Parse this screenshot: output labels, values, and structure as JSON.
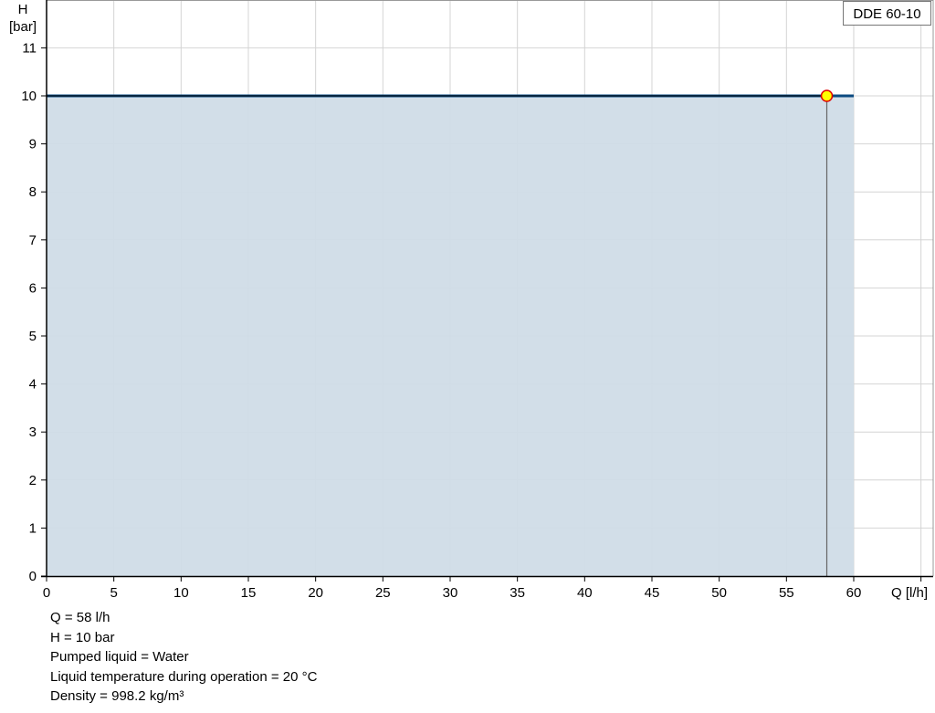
{
  "chart_data": {
    "type": "area",
    "title": "",
    "xlabel": "Q [l/h]",
    "ylabel_line1": "H",
    "ylabel_line2": "[bar]",
    "xlim": [
      0,
      66
    ],
    "ylim": [
      0,
      12
    ],
    "xticks": [
      0,
      5,
      10,
      15,
      20,
      25,
      30,
      35,
      40,
      45,
      50,
      55,
      60
    ],
    "yticks": [
      0,
      1,
      2,
      3,
      4,
      5,
      6,
      7,
      8,
      9,
      10,
      11
    ],
    "grid": true,
    "legend": {
      "label": "DDE 60-10",
      "placement": "top-right"
    },
    "series": [
      {
        "name": "DDE 60-10",
        "x": [
          0,
          60
        ],
        "y": [
          10,
          10
        ],
        "color": "#0b4a80",
        "fill": "#d0dce7"
      }
    ],
    "operating_point": {
      "x": 58,
      "y": 10,
      "fill": "#ffff00",
      "stroke": "#e00000"
    }
  },
  "info": [
    "Q = 58 l/h",
    "H = 10 bar",
    "Pumped liquid = Water",
    "Liquid temperature during operation = 20 °C",
    "Density = 998.2 kg/m³"
  ]
}
